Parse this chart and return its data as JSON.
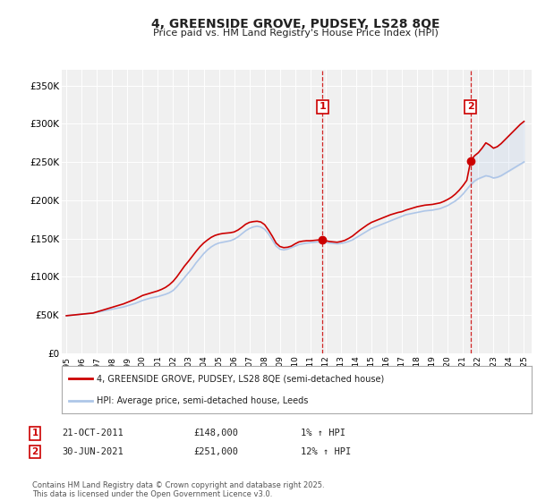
{
  "title": "4, GREENSIDE GROVE, PUDSEY, LS28 8QE",
  "subtitle": "Price paid vs. HM Land Registry's House Price Index (HPI)",
  "bg_color": "#ffffff",
  "plot_bg_color": "#f0f0f0",
  "grid_color": "#ffffff",
  "hpi_color": "#aec6e8",
  "price_color": "#cc0000",
  "ylim": [
    0,
    370000
  ],
  "yticks": [
    0,
    50000,
    100000,
    150000,
    200000,
    250000,
    300000,
    350000
  ],
  "ytick_labels": [
    "£0",
    "£50K",
    "£100K",
    "£150K",
    "£200K",
    "£250K",
    "£300K",
    "£350K"
  ],
  "xlim_start": 1994.7,
  "xlim_end": 2025.5,
  "marker1_x": 2011.8,
  "marker1_y": 148000,
  "marker2_x": 2021.5,
  "marker2_y": 251000,
  "annotation1_label": "1",
  "annotation2_label": "2",
  "legend_line1": "4, GREENSIDE GROVE, PUDSEY, LS28 8QE (semi-detached house)",
  "legend_line2": "HPI: Average price, semi-detached house, Leeds",
  "table_row1": [
    "1",
    "21-OCT-2011",
    "£148,000",
    "1% ↑ HPI"
  ],
  "table_row2": [
    "2",
    "30-JUN-2021",
    "£251,000",
    "12% ↑ HPI"
  ],
  "footer": "Contains HM Land Registry data © Crown copyright and database right 2025.\nThis data is licensed under the Open Government Licence v3.0.",
  "hpi_data_x": [
    1995.0,
    1995.25,
    1995.5,
    1995.75,
    1996.0,
    1996.25,
    1996.5,
    1996.75,
    1997.0,
    1997.25,
    1997.5,
    1997.75,
    1998.0,
    1998.25,
    1998.5,
    1998.75,
    1999.0,
    1999.25,
    1999.5,
    1999.75,
    2000.0,
    2000.25,
    2000.5,
    2000.75,
    2001.0,
    2001.25,
    2001.5,
    2001.75,
    2002.0,
    2002.25,
    2002.5,
    2002.75,
    2003.0,
    2003.25,
    2003.5,
    2003.75,
    2004.0,
    2004.25,
    2004.5,
    2004.75,
    2005.0,
    2005.25,
    2005.5,
    2005.75,
    2006.0,
    2006.25,
    2006.5,
    2006.75,
    2007.0,
    2007.25,
    2007.5,
    2007.75,
    2008.0,
    2008.25,
    2008.5,
    2008.75,
    2009.0,
    2009.25,
    2009.5,
    2009.75,
    2010.0,
    2010.25,
    2010.5,
    2010.75,
    2011.0,
    2011.25,
    2011.5,
    2011.75,
    2012.0,
    2012.25,
    2012.5,
    2012.75,
    2013.0,
    2013.25,
    2013.5,
    2013.75,
    2014.0,
    2014.25,
    2014.5,
    2014.75,
    2015.0,
    2015.25,
    2015.5,
    2015.75,
    2016.0,
    2016.25,
    2016.5,
    2016.75,
    2017.0,
    2017.25,
    2017.5,
    2017.75,
    2018.0,
    2018.25,
    2018.5,
    2018.75,
    2019.0,
    2019.25,
    2019.5,
    2019.75,
    2020.0,
    2020.25,
    2020.5,
    2020.75,
    2021.0,
    2021.25,
    2021.5,
    2021.75,
    2022.0,
    2022.25,
    2022.5,
    2022.75,
    2023.0,
    2023.25,
    2023.5,
    2023.75,
    2024.0,
    2024.25,
    2024.5,
    2024.75,
    2025.0
  ],
  "hpi_data_y": [
    49000,
    49500,
    50000,
    50500,
    51000,
    51500,
    52000,
    52500,
    53500,
    54500,
    55500,
    56500,
    57500,
    58500,
    59500,
    60500,
    62000,
    63500,
    65000,
    67000,
    69000,
    70500,
    72000,
    73000,
    74000,
    75500,
    77000,
    79000,
    82000,
    87000,
    93000,
    99000,
    105000,
    111000,
    118000,
    124000,
    130000,
    135000,
    139000,
    142000,
    144000,
    145000,
    146000,
    147000,
    149000,
    152000,
    156000,
    160000,
    163000,
    165000,
    166000,
    165000,
    162000,
    156000,
    148000,
    140000,
    136000,
    135000,
    136000,
    138000,
    140000,
    142000,
    143000,
    144000,
    144500,
    145000,
    145500,
    146000,
    145000,
    144000,
    143500,
    143000,
    143500,
    144500,
    146000,
    148000,
    151000,
    154000,
    157000,
    160000,
    163000,
    165000,
    167000,
    169000,
    171000,
    173000,
    175000,
    177000,
    179000,
    181000,
    182000,
    183000,
    184000,
    185000,
    186000,
    186500,
    187000,
    188000,
    189000,
    191000,
    193000,
    196000,
    199000,
    203000,
    208000,
    214000,
    220000,
    225000,
    228000,
    230000,
    232000,
    231000,
    229000,
    230000,
    232000,
    235000,
    238000,
    241000,
    244000,
    247000,
    250000
  ],
  "price_data_x": [
    1995.0,
    1995.25,
    1995.5,
    1995.75,
    1996.0,
    1996.25,
    1996.5,
    1996.75,
    1997.0,
    1997.25,
    1997.5,
    1997.75,
    1998.0,
    1998.25,
    1998.5,
    1998.75,
    1999.0,
    1999.25,
    1999.5,
    1999.75,
    2000.0,
    2000.25,
    2000.5,
    2000.75,
    2001.0,
    2001.25,
    2001.5,
    2001.75,
    2002.0,
    2002.25,
    2002.5,
    2002.75,
    2003.0,
    2003.25,
    2003.5,
    2003.75,
    2004.0,
    2004.25,
    2004.5,
    2004.75,
    2005.0,
    2005.25,
    2005.5,
    2005.75,
    2006.0,
    2006.25,
    2006.5,
    2006.75,
    2007.0,
    2007.25,
    2007.5,
    2007.75,
    2008.0,
    2008.25,
    2008.5,
    2008.75,
    2009.0,
    2009.25,
    2009.5,
    2009.75,
    2010.0,
    2010.25,
    2010.5,
    2010.75,
    2011.0,
    2011.25,
    2011.5,
    2011.75,
    2012.0,
    2012.25,
    2012.5,
    2012.75,
    2013.0,
    2013.25,
    2013.5,
    2013.75,
    2014.0,
    2014.25,
    2014.5,
    2014.75,
    2015.0,
    2015.25,
    2015.5,
    2015.75,
    2016.0,
    2016.25,
    2016.5,
    2016.75,
    2017.0,
    2017.25,
    2017.5,
    2017.75,
    2018.0,
    2018.25,
    2018.5,
    2018.75,
    2019.0,
    2019.25,
    2019.5,
    2019.75,
    2020.0,
    2020.25,
    2020.5,
    2020.75,
    2021.0,
    2021.25,
    2021.5,
    2021.75,
    2022.0,
    2022.25,
    2022.5,
    2022.75,
    2023.0,
    2023.25,
    2023.5,
    2023.75,
    2024.0,
    2024.25,
    2024.5,
    2024.75,
    2025.0
  ],
  "price_data_y": [
    49000,
    49500,
    50000,
    50500,
    51000,
    51500,
    52000,
    52500,
    54000,
    55500,
    57000,
    58500,
    60000,
    61500,
    63000,
    64500,
    66500,
    68500,
    70500,
    73000,
    75500,
    77000,
    78500,
    80000,
    81500,
    83500,
    86000,
    89500,
    94000,
    100000,
    107000,
    114000,
    120000,
    126500,
    133000,
    139000,
    144000,
    148000,
    151500,
    154000,
    155500,
    156500,
    157000,
    157500,
    158500,
    161000,
    164500,
    168500,
    171000,
    172000,
    172500,
    171500,
    168000,
    161000,
    153000,
    144000,
    139500,
    138000,
    138500,
    140000,
    143000,
    145500,
    146500,
    147000,
    147000,
    147500,
    148000,
    148000,
    147000,
    146000,
    145500,
    145000,
    146000,
    147500,
    150000,
    153000,
    157000,
    161000,
    164500,
    168000,
    171000,
    173000,
    175000,
    177000,
    179000,
    181000,
    182500,
    184000,
    185000,
    187000,
    188500,
    190000,
    191500,
    192500,
    193500,
    194000,
    194500,
    195500,
    196500,
    198500,
    201000,
    204000,
    208000,
    213000,
    219000,
    226000,
    251000,
    258000,
    262000,
    268000,
    275000,
    272000,
    268000,
    270000,
    274000,
    279000,
    284000,
    289000,
    294000,
    299000,
    303000
  ]
}
